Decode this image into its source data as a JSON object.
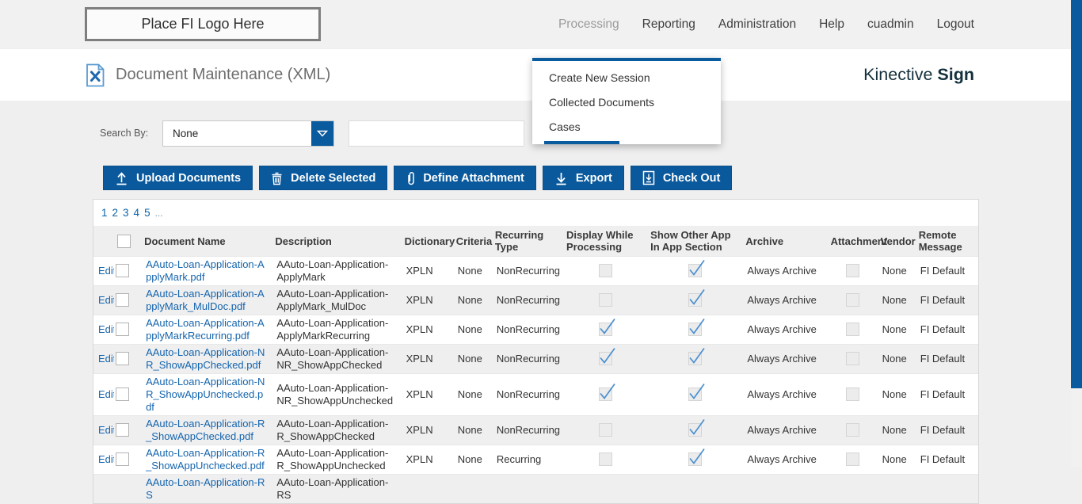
{
  "topbar": {
    "logo_placeholder": "Place FI Logo Here",
    "nav": [
      "Processing",
      "Reporting",
      "Administration",
      "Help",
      "cuadmin",
      "Logout"
    ],
    "open_item": "Processing"
  },
  "header": {
    "title": "Document Maintenance (XML)",
    "brand_name": "Kinective",
    "brand_product": "Sign"
  },
  "menu": {
    "items": [
      "Create New Session",
      "Collected Documents",
      "Cases"
    ]
  },
  "search": {
    "label": "Search By:",
    "selected": "None",
    "input_value": ""
  },
  "toolbar": {
    "buttons": [
      {
        "icon": "upload-icon",
        "label": "Upload Documents"
      },
      {
        "icon": "trash-icon",
        "label": "Delete Selected"
      },
      {
        "icon": "paperclip-icon",
        "label": "Define Attachment"
      },
      {
        "icon": "download-icon",
        "label": "Export"
      },
      {
        "icon": "checkout-icon",
        "label": "Check Out"
      }
    ]
  },
  "pagination": {
    "pages": [
      "1",
      "2",
      "3",
      "4",
      "5"
    ],
    "ellipsis": "..."
  },
  "table": {
    "edit_label": "Edit",
    "columns": [
      {
        "key": "edit",
        "label": ""
      },
      {
        "key": "select",
        "label": ""
      },
      {
        "key": "name",
        "label": "Document Name"
      },
      {
        "key": "description",
        "label": "Description"
      },
      {
        "key": "dictionary",
        "label": "Dictionary"
      },
      {
        "key": "criteria",
        "label": "Criteria"
      },
      {
        "key": "recurring",
        "label": "Recurring Type"
      },
      {
        "key": "display_while_processing",
        "label": "Display While Processing"
      },
      {
        "key": "show_other_app",
        "label": "Show Other App In App Section"
      },
      {
        "key": "archive",
        "label": "Archive"
      },
      {
        "key": "attachment",
        "label": "Attachment"
      },
      {
        "key": "vendor",
        "label": "Vendor"
      },
      {
        "key": "remote_message",
        "label": "Remote Message"
      }
    ],
    "rows": [
      {
        "edit": true,
        "name": "AAuto-Loan-Application-ApplyMark.pdf",
        "description": "AAuto-Loan-Application-ApplyMark",
        "dictionary": "XPLN",
        "criteria": "None",
        "recurring": "NonRecurring",
        "display_while_processing": false,
        "show_other_app": true,
        "archive": "Always Archive",
        "attachment": false,
        "vendor": "None",
        "remote_message": "FI Default"
      },
      {
        "edit": true,
        "name": "AAuto-Loan-Application-ApplyMark_MulDoc.pdf",
        "description": "AAuto-Loan-Application-ApplyMark_MulDoc",
        "dictionary": "XPLN",
        "criteria": "None",
        "recurring": "NonRecurring",
        "display_while_processing": false,
        "show_other_app": true,
        "archive": "Always Archive",
        "attachment": false,
        "vendor": "None",
        "remote_message": "FI Default"
      },
      {
        "edit": true,
        "name": "AAuto-Loan-Application-ApplyMarkRecurring.pdf",
        "description": "AAuto-Loan-Application-ApplyMarkRecurring",
        "dictionary": "XPLN",
        "criteria": "None",
        "recurring": "NonRecurring",
        "display_while_processing": true,
        "show_other_app": true,
        "archive": "Always Archive",
        "attachment": false,
        "vendor": "None",
        "remote_message": "FI Default"
      },
      {
        "edit": true,
        "name": "AAuto-Loan-Application-NR_ShowAppChecked.pdf",
        "description": "AAuto-Loan-Application-NR_ShowAppChecked",
        "dictionary": "XPLN",
        "criteria": "None",
        "recurring": "NonRecurring",
        "display_while_processing": true,
        "show_other_app": true,
        "archive": "Always Archive",
        "attachment": false,
        "vendor": "None",
        "remote_message": "FI Default"
      },
      {
        "edit": true,
        "name": "AAuto-Loan-Application-NR_ShowAppUnchecked.pdf",
        "description": "AAuto-Loan-Application-NR_ShowAppUnchecked",
        "dictionary": "XPLN",
        "criteria": "None",
        "recurring": "NonRecurring",
        "display_while_processing": true,
        "show_other_app": true,
        "archive": "Always Archive",
        "attachment": false,
        "vendor": "None",
        "remote_message": "FI Default"
      },
      {
        "edit": true,
        "name": "AAuto-Loan-Application-R_ShowAppChecked.pdf",
        "description": "AAuto-Loan-Application-R_ShowAppChecked",
        "dictionary": "XPLN",
        "criteria": "None",
        "recurring": "NonRecurring",
        "display_while_processing": false,
        "show_other_app": true,
        "archive": "Always Archive",
        "attachment": false,
        "vendor": "None",
        "remote_message": "FI Default"
      },
      {
        "edit": true,
        "name": "AAuto-Loan-Application-R_ShowAppUnchecked.pdf",
        "description": "AAuto-Loan-Application-R_ShowAppUnchecked",
        "dictionary": "XPLN",
        "criteria": "None",
        "recurring": "Recurring",
        "display_while_processing": false,
        "show_other_app": true,
        "archive": "Always Archive",
        "attachment": false,
        "vendor": "None",
        "remote_message": "FI Default"
      },
      {
        "name": "AAuto-Loan-Application-RS",
        "description": "AAuto-Loan-Application-RS"
      }
    ]
  },
  "colors": {
    "accent_blue": "#0a5a9e",
    "link_blue": "#1464ad",
    "check_blue": "#4a8fd0",
    "brand_dark": "#14303d"
  }
}
